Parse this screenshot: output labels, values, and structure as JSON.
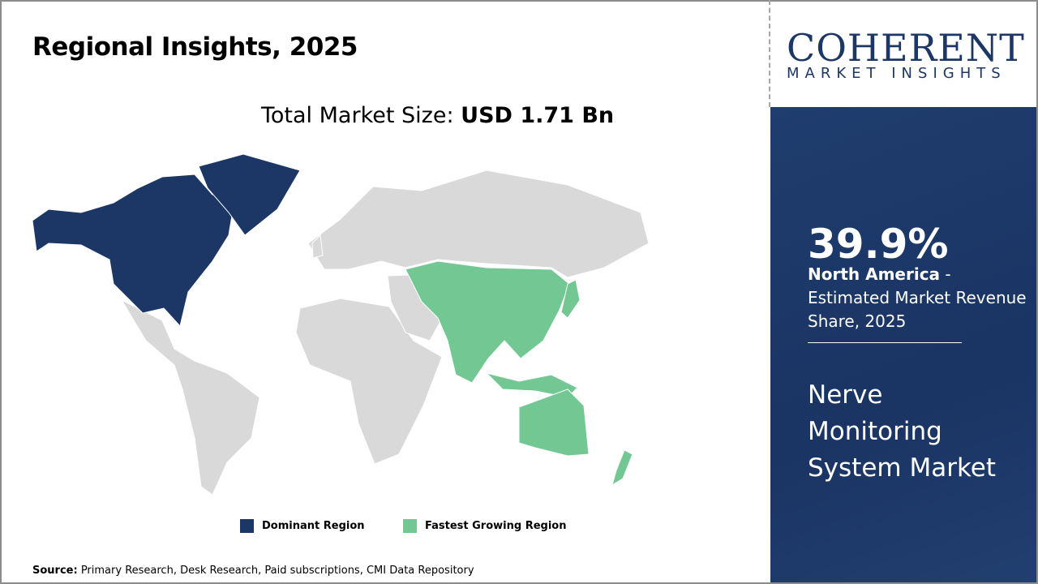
{
  "title": "Regional Insights, 2025",
  "total_market": {
    "label": "Total Market Size: ",
    "value": "USD 1.71 Bn"
  },
  "logo": {
    "main": "COHERENT",
    "sub": "MARKET INSIGHTS"
  },
  "panel": {
    "percent": "39.9%",
    "region": "North America",
    "description": " - Estimated Market Revenue Share, 2025",
    "market_name": "Nerve Monitoring System Market"
  },
  "legend": [
    {
      "label": "Dominant Region",
      "color": "#1c3765"
    },
    {
      "label": "Fastest Growing Region",
      "color": "#72c793"
    }
  ],
  "map_colors": {
    "dominant": "#1c3765",
    "fastest": "#72c793",
    "other": "#d9d9d9"
  },
  "regions": {
    "dominant": "North America",
    "fastest": "Asia Pacific"
  },
  "source": {
    "label": "Source:",
    "text": " Primary Research, Desk Research, Paid subscriptions, CMI Data Repository"
  }
}
